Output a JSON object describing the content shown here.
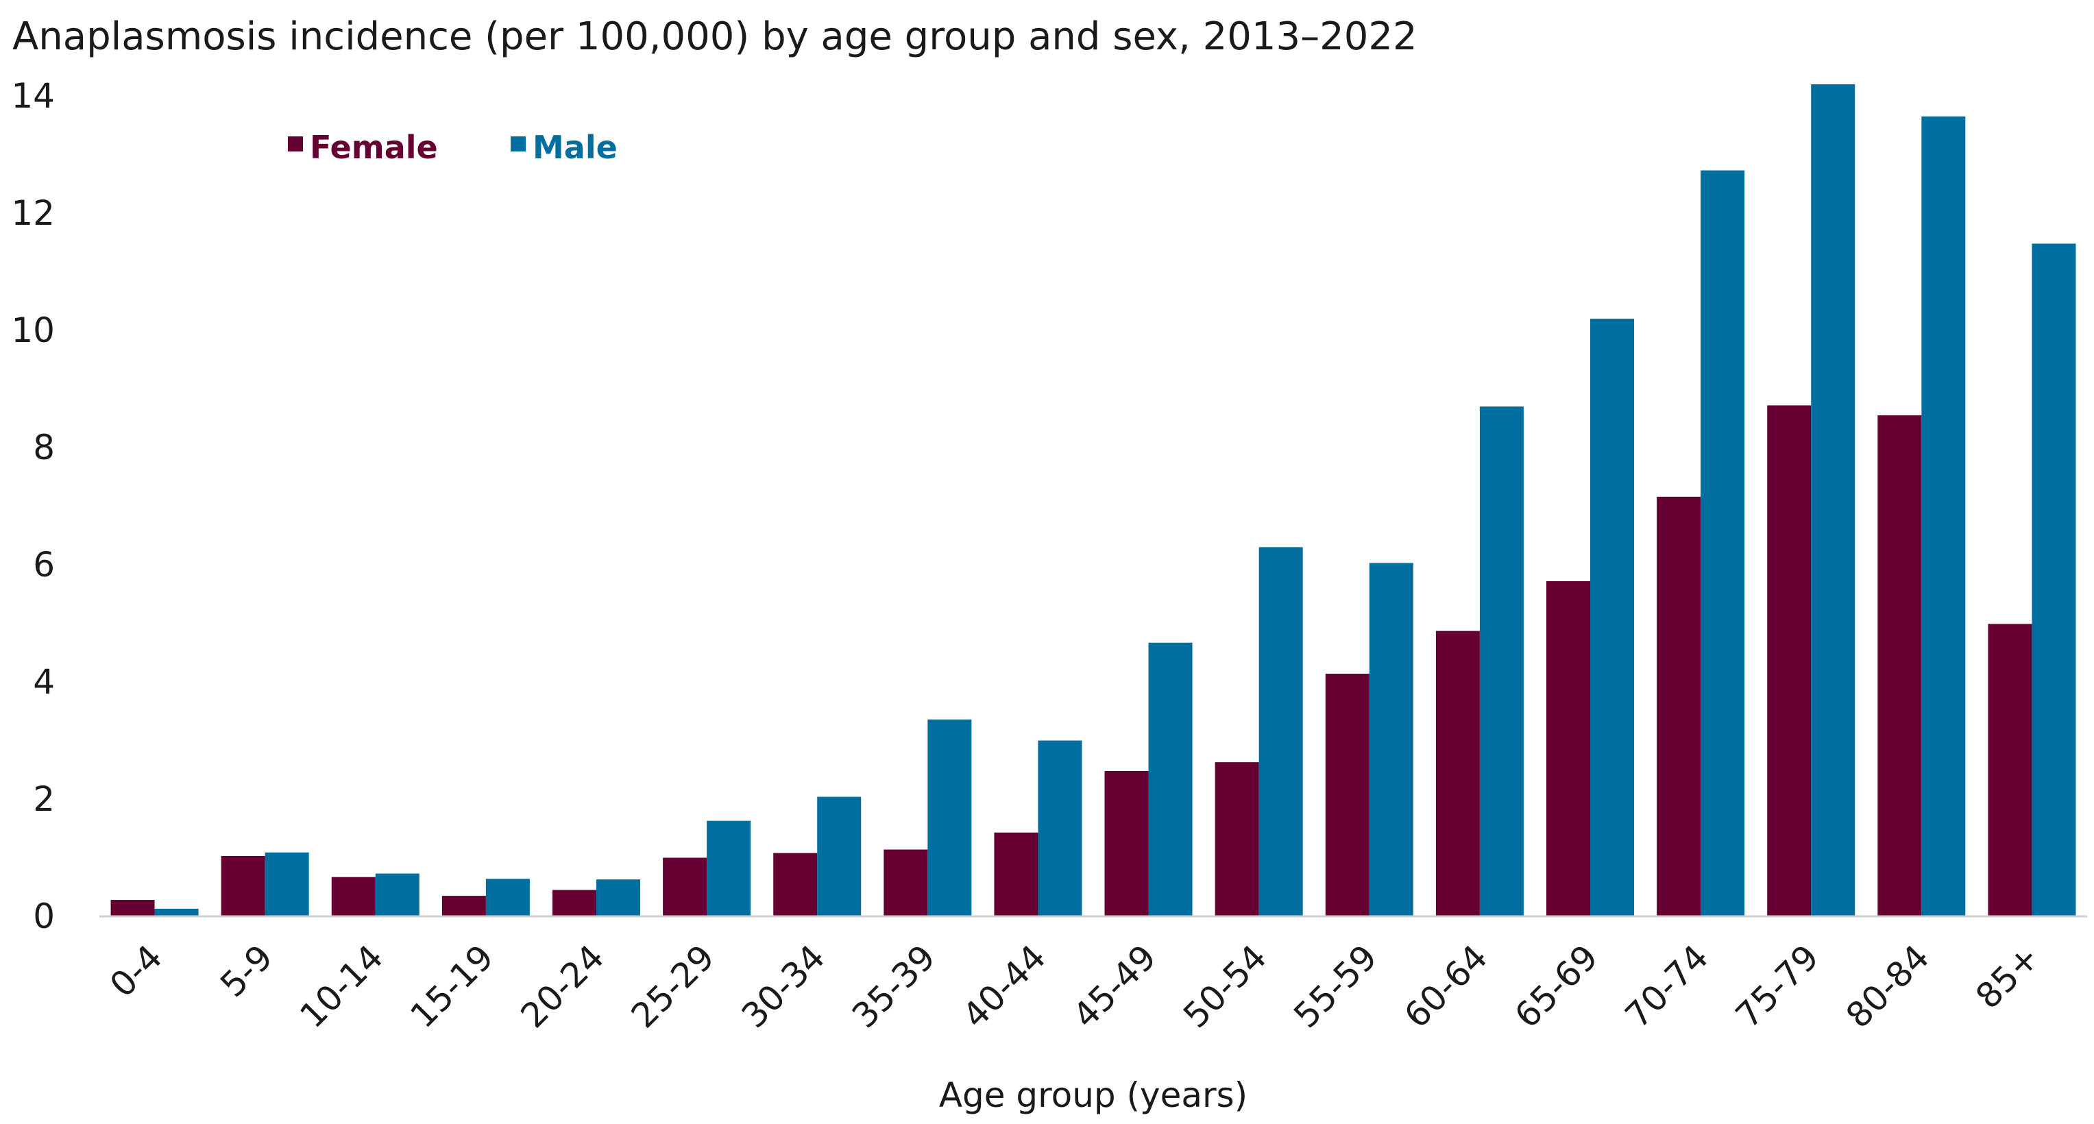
{
  "chart_data": {
    "type": "bar",
    "title": "Anaplasmosis incidence (per 100,000) by age group and sex, 2013–2022",
    "xlabel": "Age group (years)",
    "ylabel": "",
    "ylim": [
      0,
      14
    ],
    "yticks": [
      0,
      2,
      4,
      6,
      8,
      10,
      12,
      14
    ],
    "grid": false,
    "legend_position": "top-left",
    "categories": [
      "0-4",
      "5-9",
      "10-14",
      "15-19",
      "20-24",
      "25-29",
      "30-34",
      "35-39",
      "40-44",
      "45-49",
      "50-54",
      "55-59",
      "60-64",
      "65-69",
      "70-74",
      "75-79",
      "80-84",
      "85+"
    ],
    "series": [
      {
        "name": "Female",
        "color": "#660033",
        "values": [
          0.28,
          1.03,
          0.67,
          0.35,
          0.45,
          1.0,
          1.08,
          1.14,
          1.43,
          2.48,
          2.63,
          4.14,
          4.87,
          5.72,
          7.16,
          8.72,
          8.55,
          4.99
        ]
      },
      {
        "name": "Male",
        "color": "#006FA0",
        "values": [
          0.13,
          1.09,
          0.73,
          0.64,
          0.63,
          1.63,
          2.04,
          3.36,
          3.0,
          4.67,
          6.3,
          6.03,
          8.7,
          10.2,
          12.73,
          14.2,
          13.65,
          11.48
        ]
      }
    ]
  }
}
